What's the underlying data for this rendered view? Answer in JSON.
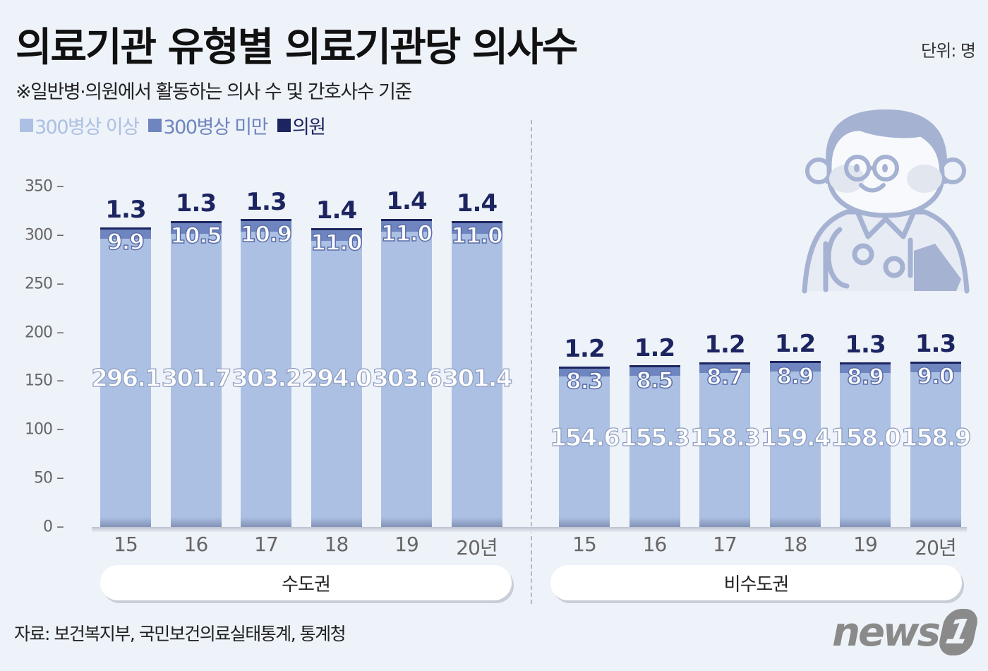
{
  "header": {
    "title": "의료기관 유형별 의료기관당 의사수",
    "unit": "단위: 명",
    "subtitle": "※일반병·의원에서 활동하는 의사 수 및 간호사수 기준"
  },
  "legend": [
    {
      "label": "300병상 이상",
      "color": "#abc0e3"
    },
    {
      "label": "300병상 미만",
      "color": "#6f85bf"
    },
    {
      "label": "의원",
      "color": "#1c2560"
    }
  ],
  "groups": [
    {
      "label": "수도권"
    },
    {
      "label": "비수도권"
    }
  ],
  "footer": {
    "source": "자료: 보건복지부, 국민보건의료실태통계, 통계청",
    "logo_text": "news",
    "logo_mark": "1"
  },
  "chart_data": {
    "type": "bar",
    "stacked": true,
    "title": "의료기관 유형별 의료기관당 의사수",
    "subtitle": "※일반병·의원에서 활동하는 의사 수 및 간호사수 기준",
    "unit": "명",
    "xlabel": "",
    "ylabel": "",
    "ylim": [
      0,
      350
    ],
    "yticks": [
      "0",
      "50",
      "100",
      "150",
      "200",
      "250",
      "300",
      "350"
    ],
    "categories": [
      "15",
      "16",
      "17",
      "18",
      "19",
      "20년"
    ],
    "panels": [
      {
        "name": "수도권",
        "series": [
          {
            "name": "300병상 이상",
            "values": [
              296.1,
              301.7,
              303.2,
              294.0,
              303.6,
              301.4
            ]
          },
          {
            "name": "300병상 미만",
            "values": [
              9.9,
              10.5,
              10.9,
              11.0,
              11.0,
              11.0
            ]
          },
          {
            "name": "의원",
            "values": [
              1.3,
              1.3,
              1.3,
              1.4,
              1.4,
              1.4
            ]
          }
        ]
      },
      {
        "name": "비수도권",
        "series": [
          {
            "name": "300병상 이상",
            "values": [
              154.6,
              155.3,
              158.3,
              159.4,
              158.0,
              158.9
            ]
          },
          {
            "name": "300병상 미만",
            "values": [
              8.3,
              8.5,
              8.7,
              8.9,
              8.9,
              9.0
            ]
          },
          {
            "name": "의원",
            "values": [
              1.2,
              1.2,
              1.2,
              1.2,
              1.3,
              1.3
            ]
          }
        ]
      }
    ],
    "legend_position": "top-left",
    "grid": false
  }
}
